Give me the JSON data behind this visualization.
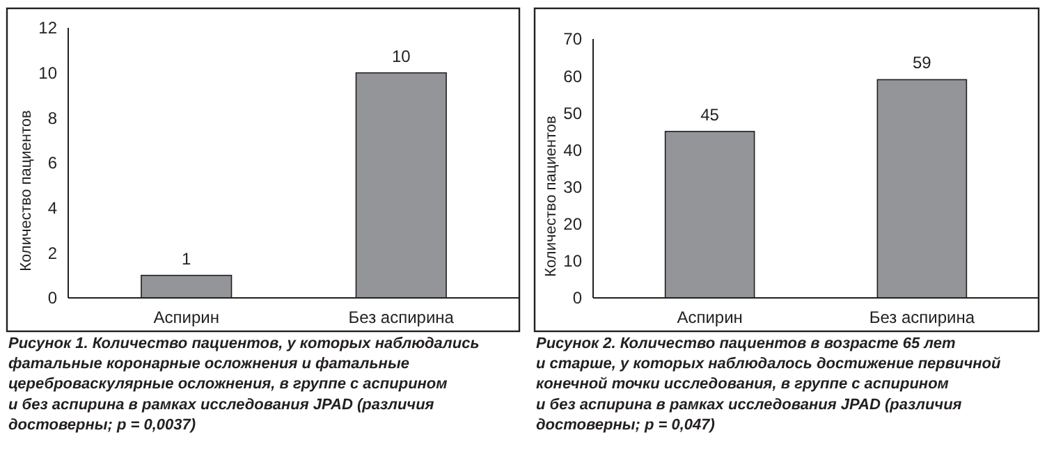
{
  "chart_data": [
    {
      "type": "bar",
      "ylabel": "Количество пациентов",
      "categories": [
        "Аспирин",
        "Без аспирина"
      ],
      "values": [
        1,
        10
      ],
      "color": "#939598",
      "ylim": [
        0,
        12
      ],
      "yticks": [
        0,
        2,
        4,
        6,
        8,
        10,
        12
      ],
      "data_labels": true,
      "grid": false,
      "annotations": [
        "Рисунок 1. Количество пациентов, у которых наблюдались\nфатальные коронарные осложнения и фатальные\nцереброваскулярные осложнения, в группе с аспирином\nи без аспирина в рамках исследования JPAD (различия\nдостоверны; p = 0,0037)"
      ]
    },
    {
      "type": "bar",
      "ylabel": "Количество пациентов",
      "categories": [
        "Аспирин",
        "Без аспирина"
      ],
      "values": [
        45,
        59
      ],
      "color": "#939598",
      "ylim": [
        0,
        70
      ],
      "yticks": [
        0,
        10,
        20,
        30,
        40,
        50,
        60,
        70
      ],
      "data_labels": true,
      "grid": false,
      "annotations": [
        "Рисунок 2. Количество пациентов в возрасте 65 лет\nи старше, у которых наблюдалось достижение первичной\nконечной точки исследования, в группе с аспирином\nи без аспирина в рамках исследования JPAD (различия\nдостоверны; p = 0,047)"
      ]
    }
  ]
}
